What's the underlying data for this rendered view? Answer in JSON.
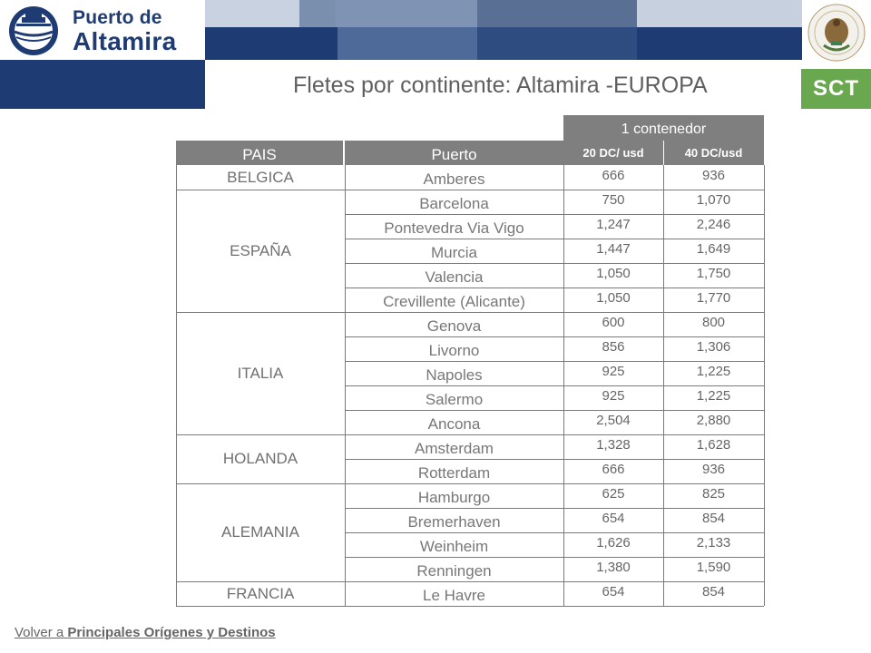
{
  "header": {
    "logo_line1": "Puerto de",
    "logo_line2": "Altamira",
    "sct_label": "SCT",
    "colors": {
      "navy": "#1f3b73",
      "sct_green": "#6aa84f",
      "header_gray": "#7f7f7f"
    }
  },
  "title": "Fletes por continente: Altamira -EUROPA",
  "table": {
    "group_header": "1 contenedor",
    "columns": [
      "PAIS",
      "Puerto",
      "20 DC/ usd",
      "40 DC/usd"
    ],
    "countries": [
      {
        "name": "BELGICA",
        "ports": [
          {
            "port": "Amberes",
            "dc20": "666",
            "dc40": "936"
          }
        ]
      },
      {
        "name": "ESPAÑA",
        "ports": [
          {
            "port": "Barcelona",
            "dc20": "750",
            "dc40": "1,070"
          },
          {
            "port": "Pontevedra Via Vigo",
            "dc20": "1,247",
            "dc40": "2,246"
          },
          {
            "port": "Murcia",
            "dc20": "1,447",
            "dc40": "1,649"
          },
          {
            "port": "Valencia",
            "dc20": "1,050",
            "dc40": "1,750"
          },
          {
            "port": "Crevillente (Alicante)",
            "dc20": "1,050",
            "dc40": "1,770"
          }
        ]
      },
      {
        "name": "ITALIA",
        "ports": [
          {
            "port": "Genova",
            "dc20": "600",
            "dc40": "800"
          },
          {
            "port": "Livorno",
            "dc20": "856",
            "dc40": "1,306"
          },
          {
            "port": "Napoles",
            "dc20": "925",
            "dc40": "1,225"
          },
          {
            "port": "Salermo",
            "dc20": "925",
            "dc40": "1,225"
          },
          {
            "port": "Ancona",
            "dc20": "2,504",
            "dc40": "2,880"
          }
        ]
      },
      {
        "name": "HOLANDA",
        "ports": [
          {
            "port": "Amsterdam",
            "dc20": "1,328",
            "dc40": "1,628"
          },
          {
            "port": "Rotterdam",
            "dc20": "666",
            "dc40": "936"
          }
        ]
      },
      {
        "name": "ALEMANIA",
        "ports": [
          {
            "port": "Hamburgo",
            "dc20": "625",
            "dc40": "825"
          },
          {
            "port": "Bremerhaven",
            "dc20": "654",
            "dc40": "854"
          },
          {
            "port": "Weinheim",
            "dc20": "1,626",
            "dc40": "2,133"
          },
          {
            "port": "Renningen",
            "dc20": "1,380",
            "dc40": "1,590"
          }
        ]
      },
      {
        "name": "FRANCIA",
        "ports": [
          {
            "port": "Le Havre",
            "dc20": "654",
            "dc40": "854"
          }
        ]
      }
    ]
  },
  "footer": {
    "prefix": "Volver a ",
    "link": "Principales Orígenes y Destinos"
  }
}
